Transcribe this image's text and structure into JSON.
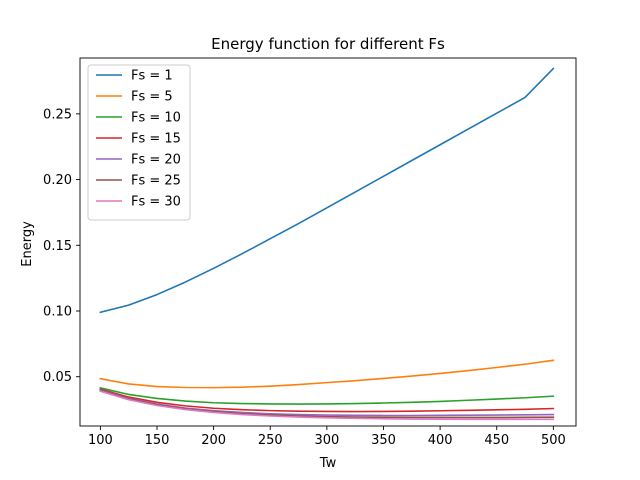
{
  "chart_data": {
    "type": "line",
    "title": "Energy function for different Fs",
    "xlabel": "Tw",
    "ylabel": "Energy",
    "xlim": [
      82,
      520
    ],
    "ylim": [
      0.0125,
      0.2925
    ],
    "xticks": [
      100,
      150,
      200,
      250,
      300,
      350,
      400,
      450,
      500
    ],
    "yticks": [
      0.05,
      0.1,
      0.15,
      0.2,
      0.25
    ],
    "ytick_labels": [
      "0.05",
      "0.10",
      "0.15",
      "0.20",
      "0.25"
    ],
    "grid": false,
    "legend_position": "upper-left",
    "x": [
      100,
      125,
      150,
      175,
      200,
      225,
      250,
      275,
      300,
      325,
      350,
      375,
      400,
      425,
      450,
      475,
      500
    ],
    "series": [
      {
        "name": "Fs = 1",
        "color": "#1f77b4",
        "values": [
          0.099,
          0.1045,
          0.1125,
          0.122,
          0.1325,
          0.1435,
          0.155,
          0.1665,
          0.1785,
          0.1905,
          0.2025,
          0.2145,
          0.2265,
          0.2385,
          0.2505,
          0.2625,
          0.2845
        ]
      },
      {
        "name": "Fs = 5",
        "color": "#ff7f0e",
        "values": [
          0.0485,
          0.0445,
          0.0425,
          0.0418,
          0.0417,
          0.042,
          0.0428,
          0.044,
          0.0455,
          0.047,
          0.0487,
          0.0505,
          0.0525,
          0.0547,
          0.057,
          0.0595,
          0.0625
        ]
      },
      {
        "name": "Fs = 10",
        "color": "#2ca02c",
        "values": [
          0.0415,
          0.0365,
          0.0335,
          0.0315,
          0.0302,
          0.0296,
          0.0293,
          0.0292,
          0.0293,
          0.0296,
          0.03,
          0.0305,
          0.0312,
          0.0321,
          0.033,
          0.034,
          0.0352
        ]
      },
      {
        "name": "Fs = 15",
        "color": "#d62728",
        "values": [
          0.0405,
          0.0345,
          0.0305,
          0.0278,
          0.026,
          0.0249,
          0.0242,
          0.0238,
          0.0236,
          0.0235,
          0.0236,
          0.0238,
          0.0241,
          0.0244,
          0.0248,
          0.0252,
          0.0258
        ]
      },
      {
        "name": "Fs = 20",
        "color": "#9467bd",
        "values": [
          0.04,
          0.0335,
          0.0292,
          0.0262,
          0.0242,
          0.0228,
          0.0218,
          0.0212,
          0.0208,
          0.0206,
          0.0205,
          0.0205,
          0.0206,
          0.0207,
          0.0208,
          0.021,
          0.0212
        ]
      },
      {
        "name": "Fs = 25",
        "color": "#8c564b",
        "values": [
          0.0395,
          0.033,
          0.0286,
          0.0255,
          0.0234,
          0.0219,
          0.0208,
          0.0201,
          0.0196,
          0.0193,
          0.0191,
          0.019,
          0.019,
          0.019,
          0.019,
          0.0191,
          0.0192
        ]
      },
      {
        "name": "Fs = 30",
        "color": "#e377c2",
        "values": [
          0.039,
          0.0325,
          0.0281,
          0.025,
          0.0228,
          0.0212,
          0.0201,
          0.0193,
          0.0187,
          0.0183,
          0.018,
          0.0178,
          0.0177,
          0.0176,
          0.0176,
          0.0176,
          0.0176
        ]
      }
    ]
  }
}
